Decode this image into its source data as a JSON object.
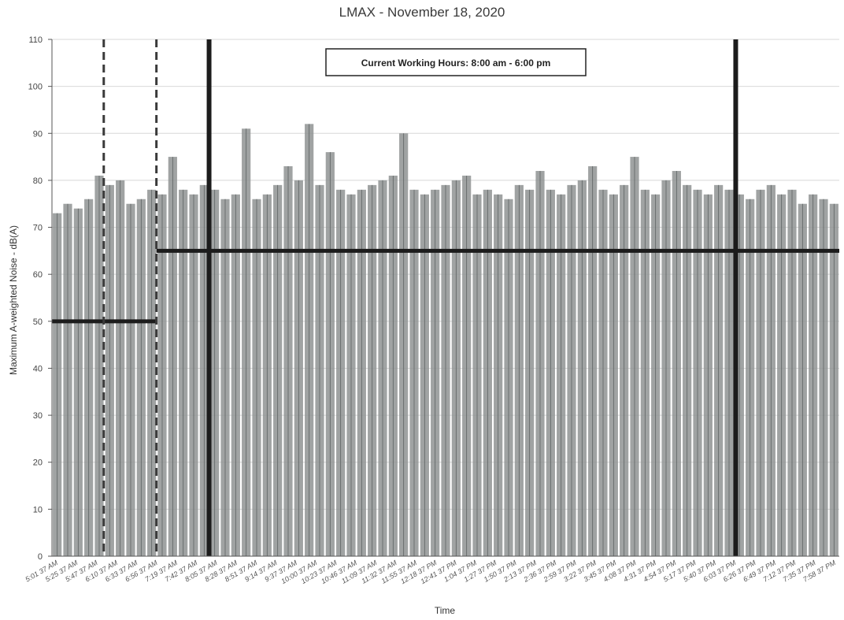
{
  "chart_data": {
    "type": "bar",
    "title": "LMAX - November 18, 2020",
    "xlabel": "Time",
    "ylabel": "Maximum A-weighted Noise - dB(A)",
    "ylim": [
      0,
      110
    ],
    "yticks": [
      0,
      10,
      20,
      30,
      40,
      50,
      60,
      70,
      80,
      90,
      100,
      110
    ],
    "grid": true,
    "legend": "none",
    "annotation": "Current Working Hours: 8:00 am - 6:00 pm",
    "x_tick_labels": [
      "5:01 37 AM",
      "5:25 37 AM",
      "5:47 37 AM",
      "6:10 37 AM",
      "6:33 37 AM",
      "6:56 37 AM",
      "7:19 37 AM",
      "7:42 37 AM",
      "8:05 37 AM",
      "8:28 37 AM",
      "8:51 37 AM",
      "9:14 37 AM",
      "9:37 37 AM",
      "10:00 37 AM",
      "10:23 37 AM",
      "10:46 37 AM",
      "11:09 37 AM",
      "11:32 37 AM",
      "11:55 37 AM",
      "12:18 37 PM",
      "12:41 37 PM",
      "1:04 37 PM",
      "1:27 37 PM",
      "1:50 37 PM",
      "2:13 37 PM",
      "2:36 37 PM",
      "2:59 37 PM",
      "3:22 37 PM",
      "3:45 37 PM",
      "4:08 37 PM",
      "4:31 37 PM",
      "4:54 37 PM",
      "5:17 37 PM",
      "5:40 37 PM",
      "6:03 37 PM",
      "6:26 37 PM",
      "6:49 37 PM",
      "7:12 37 PM",
      "7:35 37 PM",
      "7:58 37 PM"
    ],
    "series": [
      {
        "values": [
          73,
          75,
          74,
          76,
          81,
          79,
          80,
          75,
          76,
          78,
          77,
          85,
          78,
          77,
          79,
          78,
          76,
          77,
          91,
          76,
          77,
          79,
          83,
          80,
          92,
          79,
          86,
          78,
          77,
          78,
          79,
          80,
          81,
          90,
          78,
          77,
          78,
          79,
          80,
          81,
          77,
          78,
          77,
          76,
          79,
          78,
          82,
          78,
          77,
          79,
          80,
          83,
          78,
          77,
          79,
          85,
          78,
          77,
          80,
          82,
          79,
          78,
          77,
          79,
          78,
          77,
          76,
          78,
          79,
          77,
          78,
          75,
          77,
          76,
          75
        ]
      }
    ],
    "reference_lines": {
      "horizontal": [
        {
          "y": 50,
          "x_from": "5:01 37 AM",
          "x_to": "7:00 AM"
        },
        {
          "y": 65,
          "x_from": "7:00 AM",
          "x_to": "7:58 37 PM"
        }
      ],
      "vertical": [
        {
          "x": "6:00 AM",
          "style": "dashed"
        },
        {
          "x": "7:00 AM",
          "style": "dashed"
        },
        {
          "x": "8:00 AM",
          "style": "solid"
        },
        {
          "x": "6:00 PM",
          "style": "solid"
        }
      ]
    }
  }
}
